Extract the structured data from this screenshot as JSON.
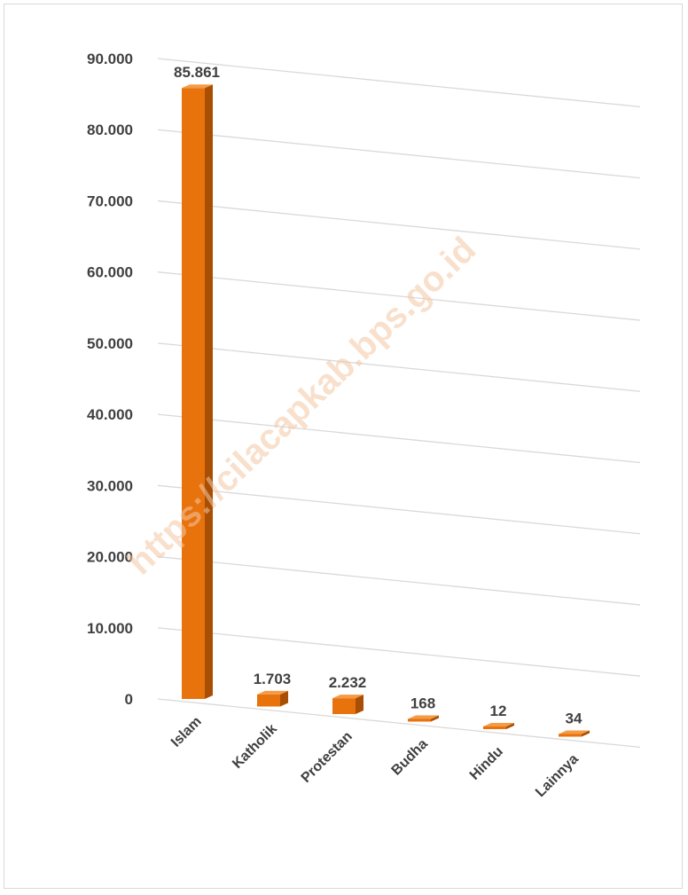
{
  "chart_data": {
    "type": "bar",
    "categories": [
      "Islam",
      "Katholik",
      "Protestan",
      "Budha",
      "Hindu",
      "Lainnya"
    ],
    "series": [
      {
        "values": [
          85861,
          1703,
          2232,
          168,
          12,
          34
        ]
      }
    ],
    "data_labels": [
      "85.861",
      "1.703",
      "2.232",
      "168",
      "12",
      "34"
    ],
    "y_ticks": [
      "0",
      "10.000",
      "20.000",
      "30.000",
      "40.000",
      "50.000",
      "60.000",
      "70.000",
      "80.000",
      "90.000"
    ],
    "ylim": [
      0,
      90000
    ],
    "grid": true,
    "legend": "none",
    "style": "3d-column",
    "title": "",
    "xlabel": "",
    "ylabel": ""
  },
  "watermark": "https://cilacapkab.bps.go.id",
  "colors": {
    "bar_front": "#e8720c",
    "bar_side": "#a94f05",
    "bar_top": "#f59a45",
    "grid": "#d9d9d9",
    "text": "#404040"
  }
}
